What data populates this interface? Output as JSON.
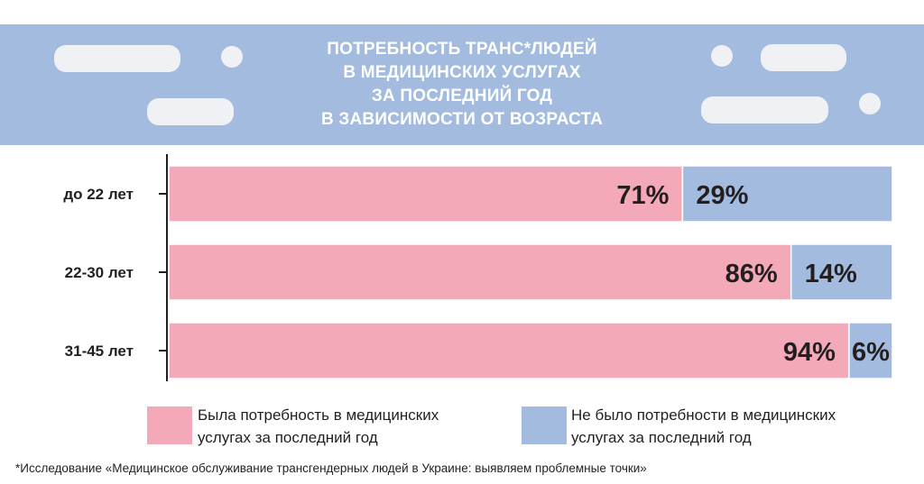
{
  "title_lines": [
    "ПОТРЕБНОСТЬ ТРАНС*ЛЮДЕЙ",
    "В МЕДИЦИНСКИХ УСЛУГАХ",
    "ЗА ПОСЛЕДНИЙ ГОД",
    "В ЗАВИСИМОСТИ ОТ ВОЗРАСТА"
  ],
  "colors": {
    "header_bg": "#a2bbde",
    "had_need": "#f4a9b8",
    "no_need": "#a2bbde",
    "text": "#231f20"
  },
  "chart_data": {
    "type": "bar",
    "orientation": "horizontal",
    "stacked": true,
    "categories": [
      "до 22 лет",
      "22-30 лет",
      "31-45 лет"
    ],
    "series": [
      {
        "name": "Была потребность в медицинских услугах за последний год",
        "values": [
          71,
          86,
          94
        ],
        "labels": [
          "71%",
          "86%",
          "94%"
        ],
        "color": "#f4a9b8"
      },
      {
        "name": "Не было потребности в медицинских услугах за последний год",
        "values": [
          29,
          14,
          6
        ],
        "labels": [
          "29%",
          "14%",
          "6%"
        ],
        "color": "#a2bbde"
      }
    ],
    "xlim": [
      0,
      100
    ],
    "legend_position": "bottom",
    "grid": false
  },
  "legend": {
    "had_need_line1": "Была потребность в медицинских",
    "had_need_line2": "услугах за последний год",
    "no_need_line1": "Не было потребности в медицинских",
    "no_need_line2": "услугах за последний год"
  },
  "footnote": "*Исследование «Медицинское обслуживание трансгендерных людей в Украине: выявляем проблемные точки»"
}
